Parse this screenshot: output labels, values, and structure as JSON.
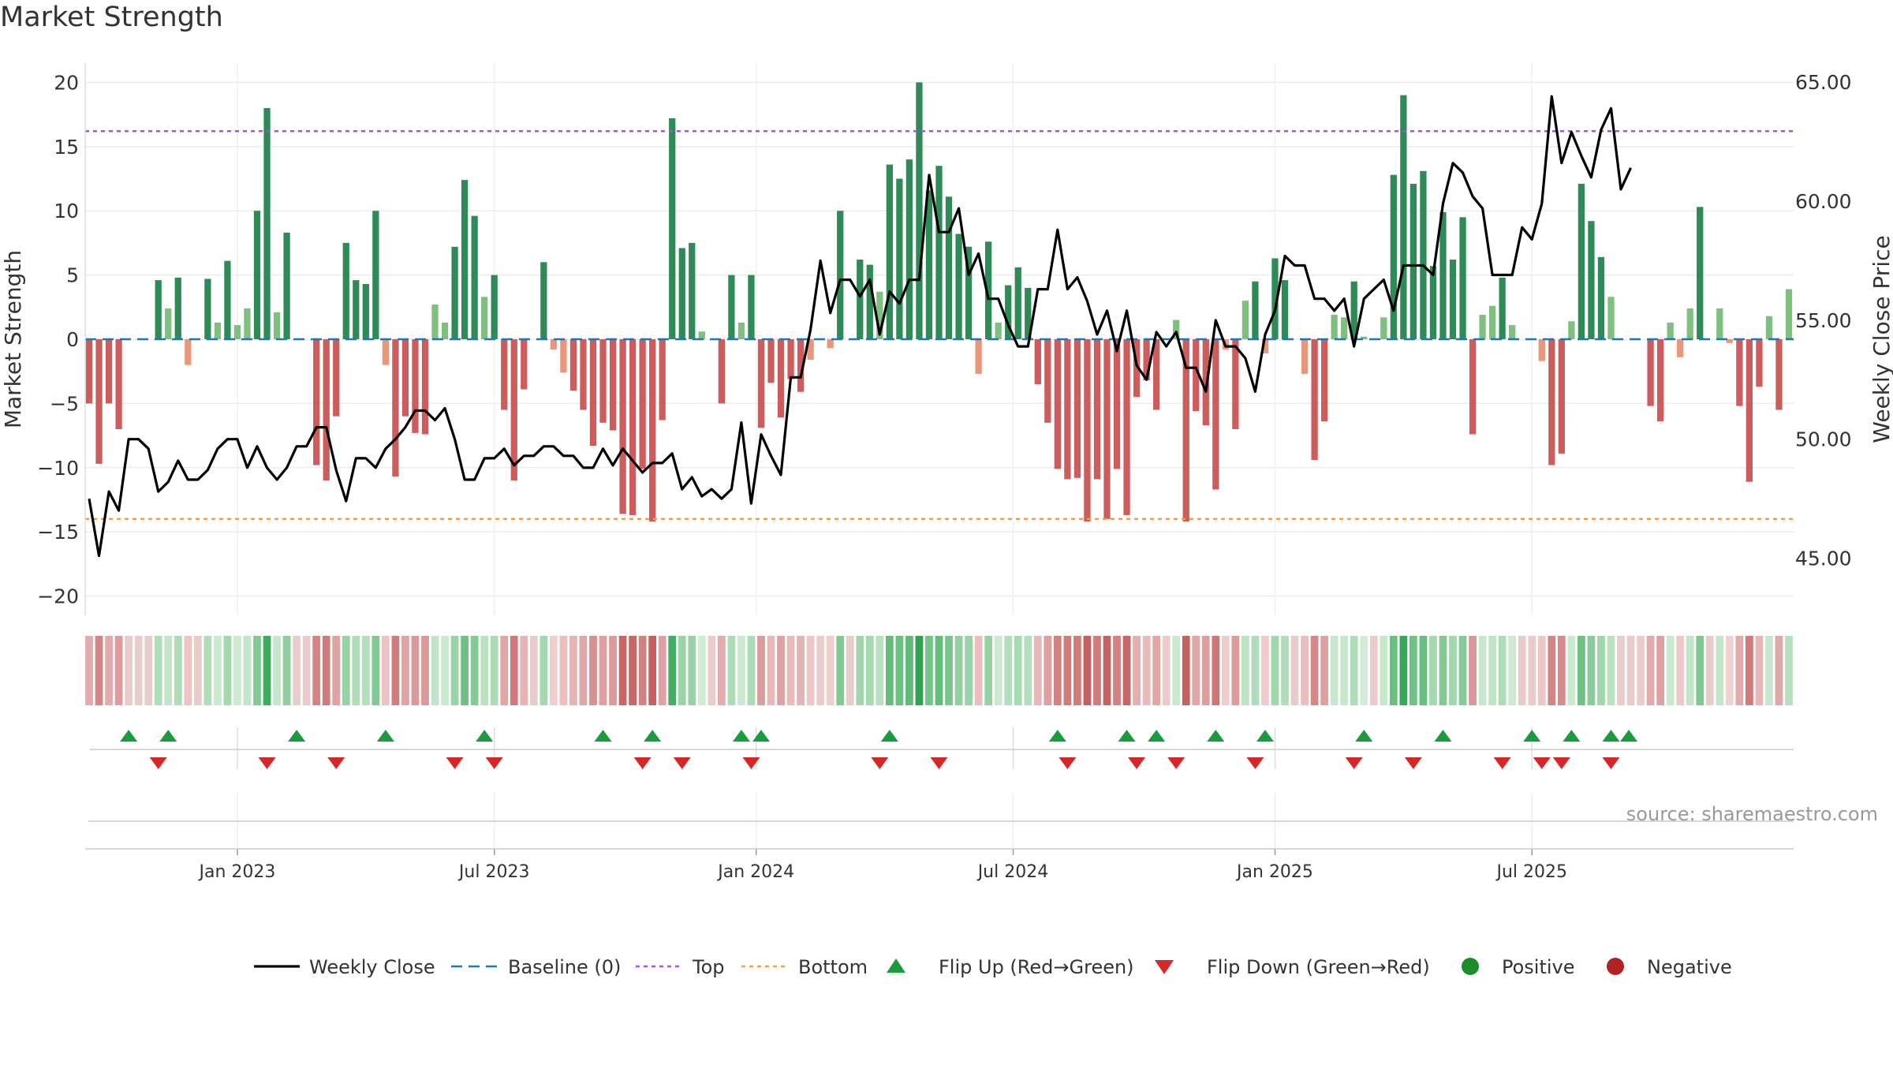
{
  "title": "Market Strength",
  "source": "source: sharemaestro.com",
  "chart_data": {
    "type": "bar+line",
    "title": "Market Strength",
    "ylabel_left": "Market Strength",
    "ylabel_right": "Weekly Close Price",
    "left_ylim": [
      -21.5,
      21.5
    ],
    "right_ylim": [
      42.6,
      65.8
    ],
    "left_ticks": [
      "20",
      "15",
      "10",
      "5",
      "0",
      "−5",
      "−10",
      "−15",
      "−20"
    ],
    "left_tick_values": [
      20,
      15,
      10,
      5,
      0,
      -5,
      -10,
      -15,
      -20
    ],
    "right_ticks": [
      "65.00",
      "60.00",
      "55.00",
      "50.00",
      "45.00"
    ],
    "right_tick_values": [
      65,
      60,
      55,
      50,
      45
    ],
    "x_labels": [
      "Jan 2023",
      "Jul 2023",
      "Jan 2024",
      "Jul 2024",
      "Jan 2025",
      "Jul 2025"
    ],
    "x_label_weeks": [
      15,
      41,
      67.5,
      93.5,
      120,
      146
    ],
    "top_level": 16.2,
    "bottom_level": -14.0,
    "strength": [
      -5,
      -9.7,
      -5,
      -7,
      0,
      0,
      0,
      4.6,
      2.4,
      4.8,
      -2,
      0,
      4.7,
      1.3,
      6.1,
      1.1,
      2.4,
      10,
      18,
      2.1,
      8.3,
      0,
      0,
      -9.8,
      -11,
      -6,
      7.5,
      4.6,
      4.3,
      10,
      -2,
      -10.7,
      -6,
      -7.3,
      -7.4,
      2.7,
      1.3,
      7.2,
      12.4,
      9.6,
      3.3,
      5,
      -5.5,
      -11,
      -3.9,
      0,
      6,
      -0.8,
      -2.6,
      -4,
      -5.5,
      -8.3,
      -6.5,
      -7.1,
      -13.6,
      -13.7,
      -10.1,
      -14.2,
      -6.3,
      17.2,
      7.1,
      7.5,
      0.6,
      0,
      -5,
      5,
      1.3,
      5,
      -6.9,
      -3.4,
      -6.1,
      -3.1,
      -4.1,
      -1.6,
      0,
      -0.7,
      10,
      0,
      6.2,
      5.8,
      3.7,
      13.6,
      12.5,
      14,
      20,
      11.6,
      13.5,
      11.1,
      8.2,
      7.2,
      -2.7,
      7.6,
      1.3,
      4.2,
      5.6,
      4,
      -3.5,
      -6.5,
      -10.1,
      -10.9,
      -10.8,
      -14.2,
      -10.9,
      -14,
      -10.1,
      -13.7,
      -4.5,
      -3.2,
      -5.5,
      0,
      1.5,
      -14.2,
      -5.6,
      -6.7,
      -11.7,
      -0.8,
      -7,
      3,
      4.5,
      -1.1,
      6.3,
      4.6,
      0,
      -2.7,
      -9.4,
      -6.4,
      1.9,
      1.7,
      4.5,
      0.2,
      0,
      1.7,
      12.8,
      19,
      12.1,
      13.1,
      5.7,
      9.9,
      6.2,
      9.5,
      -7.4,
      1.9,
      2.6,
      4.8,
      1.1,
      0,
      0,
      -1.7,
      -9.8,
      -8.9,
      1.4,
      12.1,
      9.2,
      6.4,
      3.3,
      0,
      0,
      0,
      -5.2,
      -6.4,
      1.3,
      -1.4,
      2.4,
      10.3,
      0,
      2.4,
      -0.3,
      -5.2,
      -11.1,
      -3.7,
      1.8,
      -5.5,
      3.9
    ],
    "weekly_close": [
      47.5,
      45.1,
      47.8,
      47,
      50,
      50,
      49.6,
      47.8,
      48.2,
      49.1,
      48.3,
      48.3,
      48.7,
      49.6,
      50,
      50,
      48.8,
      49.7,
      48.8,
      48.3,
      48.8,
      49.7,
      49.7,
      50.5,
      50.5,
      48.7,
      47.4,
      49.2,
      49.2,
      48.8,
      49.6,
      50,
      50.5,
      51.2,
      51.2,
      50.8,
      51.3,
      50,
      48.3,
      48.3,
      49.2,
      49.2,
      49.6,
      48.9,
      49.3,
      49.3,
      49.7,
      49.7,
      49.3,
      49.3,
      48.8,
      48.8,
      49.6,
      48.9,
      49.6,
      49.1,
      48.6,
      49,
      49,
      49.4,
      47.9,
      48.4,
      47.6,
      47.9,
      47.5,
      47.9,
      50.7,
      47.3,
      50.2,
      49.3,
      48.5,
      52.6,
      52.6,
      54.6,
      57.5,
      55.3,
      56.7,
      56.7,
      56,
      56.7,
      54.4,
      56.2,
      55.7,
      56.7,
      56.7,
      61.1,
      58.7,
      58.7,
      59.7,
      56.9,
      57.8,
      55.9,
      55.9,
      54.8,
      53.9,
      53.9,
      56.3,
      56.3,
      58.8,
      56.3,
      56.8,
      55.8,
      54.4,
      55.4,
      53.7,
      55.4,
      53.1,
      52.5,
      54.5,
      53.9,
      54.5,
      53,
      53,
      52,
      55,
      53.9,
      53.9,
      53.4,
      52,
      54.4,
      55.4,
      57.7,
      57.3,
      57.3,
      55.9,
      55.9,
      55.4,
      55.9,
      53.9,
      55.9,
      56.3,
      56.7,
      55.4,
      57.3,
      57.3,
      57.3,
      56.9,
      59.9,
      61.6,
      61.2,
      60.2,
      59.7,
      56.9,
      56.9,
      56.9,
      58.9,
      58.4,
      59.9,
      64.4,
      61.6,
      62.9,
      61.9,
      61,
      63,
      63.9,
      60.5,
      61.4
    ],
    "flip_up_weeks": [
      4,
      8,
      21,
      30,
      40,
      52,
      57,
      66,
      68,
      81,
      98,
      105,
      108,
      114,
      119,
      129,
      137,
      146,
      150,
      154,
      155.8
    ],
    "flip_down_weeks": [
      7,
      18,
      25,
      37,
      41,
      56,
      60,
      67,
      80,
      86,
      99,
      106,
      110,
      118,
      128,
      134,
      143,
      147,
      149,
      154
    ],
    "legend": [
      "Weekly Close",
      "Baseline (0)",
      "Top",
      "Bottom",
      "Flip Up (Red→Green)",
      "Flip Down (Green→Red)",
      "Positive",
      "Negative"
    ]
  },
  "colors": {
    "strong_green": "#2e8b57",
    "light_green": "#7fbf7f",
    "strong_red": "#cd5c5c",
    "light_red": "#e9967a",
    "line": "#000000",
    "baseline": "#1f77b4",
    "top": "#9b59d6",
    "bottom": "#e8a050",
    "flip_up": "#1a9c3e",
    "flip_down": "#d62728",
    "positive": "#1e8c2a",
    "negative": "#b22222"
  }
}
